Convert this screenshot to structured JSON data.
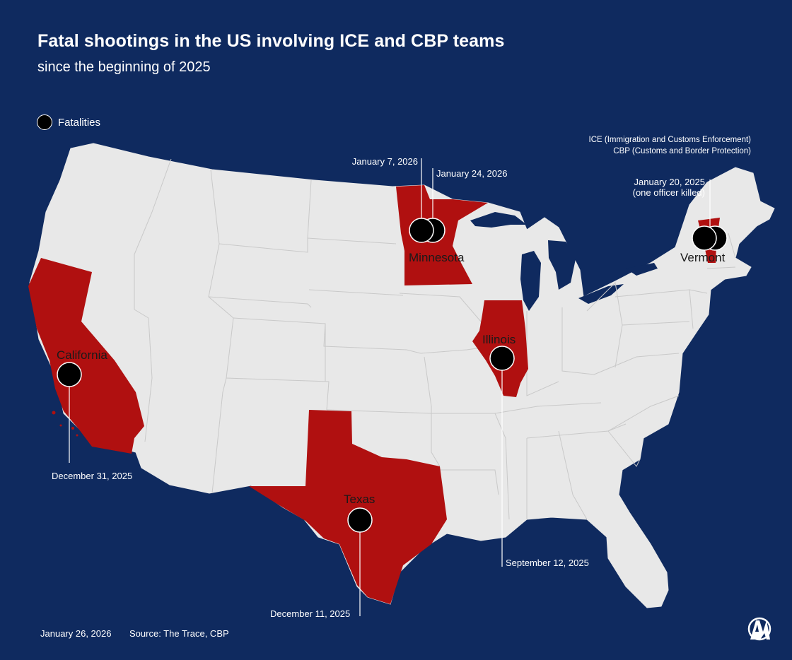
{
  "title": "Fatal shootings in the US involving ICE and CBP teams",
  "subtitle": "since the beginning of 2025",
  "legend": {
    "label": "Fatalities"
  },
  "note": {
    "line1": "ICE (Immigration and Customs Enforcement)",
    "line2": "CBP (Customs and Border Protection)"
  },
  "footer": {
    "date": "January 26, 2026",
    "source": "Source: The Trace, CBP"
  },
  "logo": {
    "icon": "aa-logo-icon"
  },
  "colors": {
    "background": "#0f2a5f",
    "land": "#e8e8e8",
    "highlight": "#b01010",
    "border": "#c8c8c8",
    "marker": "#000000",
    "text": "#ffffff"
  },
  "states": {
    "california": "California",
    "minnesota": "Minnesota",
    "illinois": "Illinois",
    "texas": "Texas",
    "vermont": "Vermont"
  },
  "events": {
    "california": "December 31, 2025",
    "texas": "December 11, 2025",
    "illinois": "September 12, 2025",
    "minnesota_1": "January 7, 2026",
    "minnesota_2": "January 24, 2026",
    "vermont_1": "January 20, 2025",
    "vermont_2": "(one officer killed)"
  }
}
